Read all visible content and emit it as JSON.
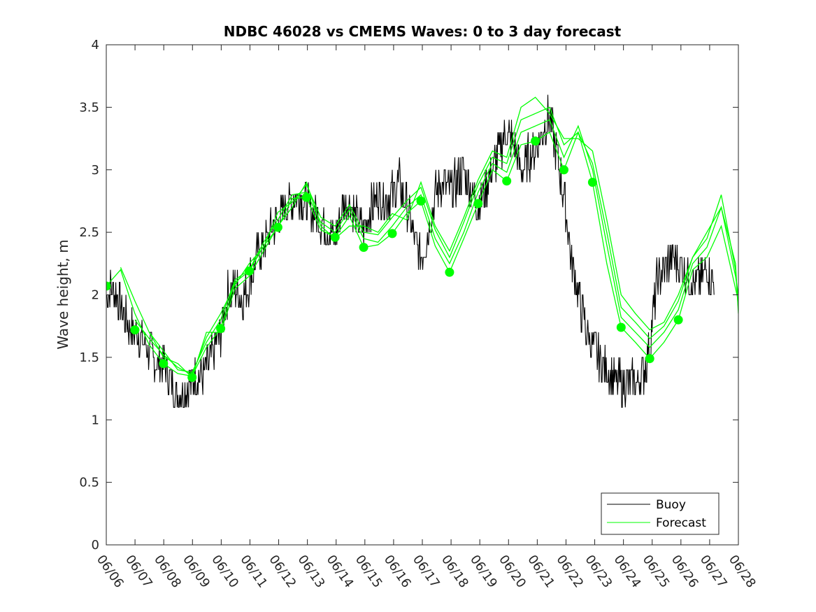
{
  "chart_data": {
    "type": "line",
    "title": "NDBC 46028 vs CMEMS Waves: 0 to 3 day forecast",
    "xlabel": "",
    "ylabel": "Wave height, m",
    "ylim": [
      0,
      4
    ],
    "yticks": [
      "0",
      "0.5",
      "1",
      "1.5",
      "2",
      "2.5",
      "3",
      "3.5",
      "4"
    ],
    "xlim": [
      0,
      22.1
    ],
    "xticks": [
      "06/06",
      "06/07",
      "06/08",
      "06/09",
      "06/10",
      "06/11",
      "06/12",
      "06/13",
      "06/14",
      "06/15",
      "06/16",
      "06/17",
      "06/18",
      "06/19",
      "06/20",
      "06/21",
      "06/22",
      "06/23",
      "06/24",
      "06/25",
      "06/26",
      "06/27",
      "06/28"
    ],
    "grid": false,
    "legend_position": "bottom-right",
    "legend": [
      "Buoy",
      "Forecast"
    ],
    "colors": {
      "buoy": "#000000",
      "forecast": "#00ff00",
      "axes": "#262626"
    },
    "buoy": {
      "name": "Buoy",
      "x": [
        0,
        0.25,
        0.5,
        0.75,
        1,
        1.25,
        1.5,
        1.75,
        2,
        2.25,
        2.5,
        2.75,
        3,
        3.25,
        3.5,
        3.75,
        4,
        4.25,
        4.5,
        4.75,
        5,
        5.25,
        5.5,
        5.75,
        6,
        6.25,
        6.5,
        6.75,
        7,
        7.25,
        7.5,
        7.75,
        8,
        8.25,
        8.5,
        8.75,
        9,
        9.25,
        9.5,
        9.75,
        10,
        10.25,
        10.5,
        10.75,
        11,
        11.25,
        11.5,
        11.75,
        12,
        12.25,
        12.5,
        12.75,
        13,
        13.25,
        13.5,
        13.75,
        14,
        14.25,
        14.5,
        14.75,
        15,
        15.25,
        15.5,
        15.75,
        16,
        16.25,
        16.5,
        16.75,
        17,
        17.25,
        17.5,
        17.75,
        18,
        18.25,
        18.5,
        18.75,
        19,
        19.25,
        19.5,
        19.75,
        20,
        20.25,
        20.5,
        20.75,
        21,
        21.25
      ],
      "values": [
        2.0,
        2.05,
        1.9,
        1.75,
        1.7,
        1.65,
        1.55,
        1.45,
        1.45,
        1.3,
        1.2,
        1.25,
        1.3,
        1.35,
        1.4,
        1.55,
        1.7,
        2.0,
        2.05,
        1.95,
        2.1,
        2.3,
        2.4,
        2.5,
        2.6,
        2.7,
        2.75,
        2.8,
        2.75,
        2.65,
        2.6,
        2.5,
        2.45,
        2.7,
        2.75,
        2.6,
        2.5,
        2.7,
        2.8,
        2.75,
        2.8,
        2.9,
        2.7,
        2.45,
        2.3,
        2.5,
        2.8,
        2.9,
        2.85,
        2.9,
        3.0,
        2.85,
        2.7,
        2.85,
        3.0,
        3.15,
        3.3,
        3.2,
        3.0,
        3.1,
        3.15,
        3.3,
        3.45,
        3.1,
        2.8,
        2.3,
        2.0,
        1.75,
        1.6,
        1.5,
        1.4,
        1.3,
        1.3,
        1.3,
        1.3,
        1.35,
        1.6,
        2.1,
        2.2,
        2.3,
        2.25,
        2.2,
        2.1,
        2.1,
        2.2,
        2.1
      ]
    },
    "forecast": {
      "name": "Forecast",
      "runs": [
        {
          "x": [
            0,
            0.5,
            1,
            1.5,
            2,
            2.5,
            3,
            3.5,
            4,
            4.5,
            5,
            5.5,
            6,
            6.5,
            7,
            7.5,
            8,
            8.5,
            9,
            9.5,
            10,
            10.5,
            11,
            11.5,
            12,
            12.5,
            13,
            13.5,
            14,
            14.5,
            15,
            15.5,
            16,
            16.5,
            17,
            17.5,
            18,
            18.5,
            19,
            19.5,
            20,
            20.5,
            21,
            21.5,
            22,
            22.1
          ],
          "values": [
            2.07,
            2.2,
            1.85,
            1.6,
            1.45,
            1.37,
            1.35,
            1.58,
            1.73,
            2.1,
            2.19,
            2.39,
            2.54,
            2.77,
            2.78,
            2.52,
            2.46,
            2.63,
            2.38,
            2.4,
            2.49,
            2.65,
            2.75,
            2.39,
            2.18,
            2.45,
            2.73,
            3.0,
            2.91,
            3.2,
            3.23,
            3.3,
            3.0,
            3.3,
            2.9,
            2.25,
            1.74,
            1.62,
            1.49,
            1.62,
            1.8,
            2.2,
            2.3,
            2.55,
            2.05,
            1.95
          ]
        },
        {
          "x": [
            0.5,
            1,
            1.5,
            2,
            2.5,
            3,
            3.5,
            4,
            4.5,
            5,
            5.5,
            6,
            6.5,
            7,
            7.5,
            8,
            8.5,
            9,
            9.5,
            10,
            10.5,
            11,
            11.5,
            12,
            12.5,
            13,
            13.5,
            14,
            14.5,
            15,
            15.5,
            16,
            16.5,
            17,
            17.5,
            18,
            18.5,
            19,
            19.5,
            20,
            20.5,
            21,
            21.5,
            22,
            22.1
          ],
          "values": [
            2.22,
            1.95,
            1.7,
            1.55,
            1.4,
            1.38,
            1.62,
            1.8,
            2.12,
            2.2,
            2.42,
            2.6,
            2.8,
            2.82,
            2.58,
            2.5,
            2.68,
            2.45,
            2.42,
            2.55,
            2.7,
            2.8,
            2.45,
            2.25,
            2.5,
            2.82,
            3.05,
            2.98,
            3.3,
            3.35,
            3.4,
            3.1,
            3.35,
            3.0,
            2.4,
            1.82,
            1.7,
            1.58,
            1.7,
            1.88,
            2.25,
            2.38,
            2.7,
            2.15,
            2.0
          ]
        },
        {
          "x": [
            1,
            1.5,
            2,
            2.5,
            3,
            3.5,
            4,
            4.5,
            5,
            5.5,
            6,
            6.5,
            7,
            7.5,
            8,
            8.5,
            9,
            9.5,
            10,
            10.5,
            11,
            11.5,
            12,
            12.5,
            13,
            13.5,
            14,
            14.5,
            15,
            15.5,
            16,
            16.5,
            17,
            17.5,
            18,
            18.5,
            19,
            19.5,
            20,
            20.5,
            21,
            21.5,
            22,
            22.1
          ],
          "values": [
            1.8,
            1.65,
            1.52,
            1.42,
            1.36,
            1.66,
            1.85,
            2.08,
            2.25,
            2.38,
            2.66,
            2.74,
            2.88,
            2.62,
            2.55,
            2.72,
            2.5,
            2.48,
            2.62,
            2.75,
            2.86,
            2.52,
            2.3,
            2.58,
            2.88,
            3.1,
            3.05,
            3.4,
            3.45,
            3.5,
            3.2,
            3.3,
            3.05,
            2.5,
            1.9,
            1.78,
            1.65,
            1.75,
            1.95,
            2.3,
            2.45,
            2.8,
            2.2,
            1.88
          ]
        },
        {
          "x": [
            1.5,
            2,
            2.5,
            3,
            3.5,
            4,
            4.5,
            5,
            5.5,
            6,
            6.5,
            7,
            7.5,
            8,
            8.5,
            9,
            9.5,
            10,
            10.5,
            11,
            11.5,
            12,
            12.5,
            13,
            13.5,
            14,
            14.5,
            15,
            15.5,
            16,
            16.5,
            17,
            17.5,
            18,
            18.5,
            19,
            19.5,
            20,
            20.5,
            21,
            21.5,
            22,
            22.1
          ],
          "values": [
            1.7,
            1.5,
            1.45,
            1.34,
            1.7,
            1.7,
            2.05,
            2.15,
            2.35,
            2.55,
            2.7,
            2.9,
            2.55,
            2.45,
            2.55,
            2.55,
            2.5,
            2.65,
            2.6,
            2.9,
            2.55,
            2.35,
            2.62,
            2.92,
            3.15,
            3.1,
            3.5,
            3.58,
            3.45,
            3.25,
            3.25,
            3.15,
            2.6,
            2.0,
            1.85,
            1.72,
            1.78,
            2.0,
            2.3,
            2.5,
            2.7,
            2.25,
            1.85
          ]
        }
      ],
      "markers": {
        "x": [
          0,
          1,
          2,
          3,
          4,
          5,
          6,
          7,
          8,
          9,
          10,
          11,
          12,
          13,
          14,
          15,
          16,
          17,
          18,
          19,
          20
        ],
        "values": [
          2.07,
          1.72,
          1.45,
          1.34,
          1.73,
          2.19,
          2.54,
          2.78,
          2.46,
          2.38,
          2.49,
          2.75,
          2.18,
          2.73,
          2.91,
          3.23,
          3.0,
          2.9,
          1.74,
          1.49,
          1.8
        ]
      }
    }
  }
}
